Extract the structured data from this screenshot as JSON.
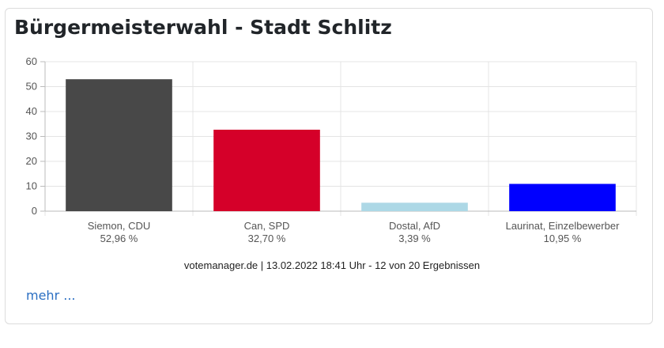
{
  "card": {
    "title": "Bürgermeisterwahl - Stadt Schlitz",
    "source_line": "votemanager.de | 13.02.2022 18:41 Uhr - 12 von 20 Ergebnissen",
    "more_link": "mehr ..."
  },
  "chart_data": {
    "type": "bar",
    "categories": [
      "Siemon, CDU",
      "Can, SPD",
      "Dostal, AfD",
      "Laurinat, Einzelbewerber"
    ],
    "value_labels": [
      "52,96 %",
      "32,70 %",
      "3,39 %",
      "10,95 %"
    ],
    "values": [
      52.96,
      32.7,
      3.39,
      10.95
    ],
    "colors": [
      "#484848",
      "#d50029",
      "#add8e6",
      "#0000ff"
    ],
    "ylim": [
      0,
      60
    ],
    "yticks": [
      0,
      10,
      20,
      30,
      40,
      50,
      60
    ],
    "grid": true,
    "legend": "none"
  }
}
